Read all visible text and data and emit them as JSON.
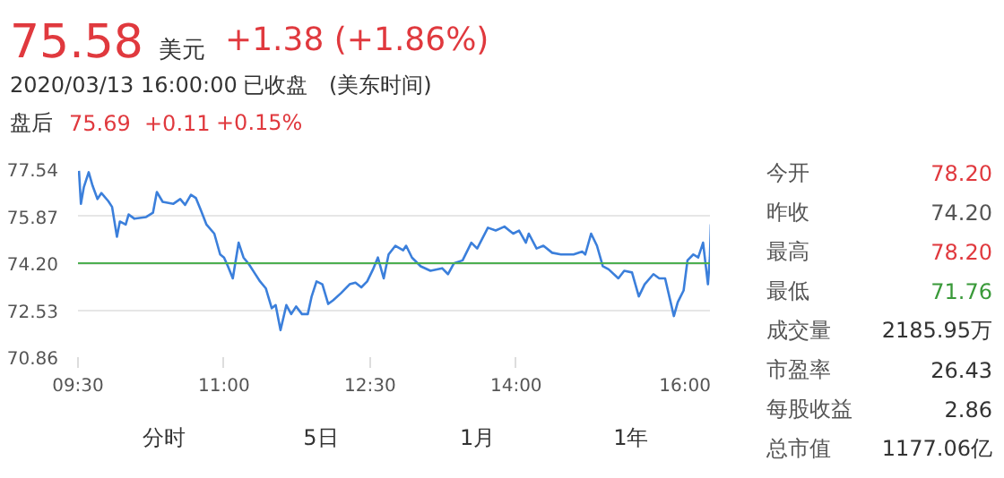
{
  "chart_data": {
    "type": "line",
    "x": [
      9.51,
      9.53,
      9.56,
      9.61,
      9.65,
      9.7,
      9.74,
      9.81,
      9.85,
      9.9,
      9.93,
      9.99,
      10.02,
      10.08,
      10.2,
      10.27,
      10.31,
      10.37,
      10.48,
      10.55,
      10.6,
      10.66,
      10.71,
      10.76,
      10.82,
      10.9,
      10.96,
      11.0,
      11.04,
      11.09,
      11.15,
      11.2,
      11.25,
      11.31,
      11.37,
      11.43,
      11.49,
      11.53,
      11.58,
      11.64,
      11.69,
      11.74,
      11.8,
      11.86,
      11.9,
      11.95,
      12.01,
      12.07,
      12.12,
      12.2,
      12.29,
      12.35,
      12.41,
      12.47,
      12.53,
      12.58,
      12.64,
      12.69,
      12.76,
      12.84,
      12.87,
      12.93,
      13.02,
      13.12,
      13.24,
      13.3,
      13.36,
      13.45,
      13.54,
      13.6,
      13.71,
      13.79,
      13.88,
      13.97,
      14.03,
      14.1,
      14.13,
      14.21,
      14.28,
      14.37,
      14.46,
      14.59,
      14.68,
      14.71,
      14.77,
      14.83,
      14.89,
      14.95,
      15.05,
      15.11,
      15.19,
      15.26,
      15.32,
      15.41,
      15.47,
      15.53,
      15.62,
      15.66,
      15.72,
      15.76,
      15.82,
      15.87,
      15.92,
      15.97,
      15.99,
      16.0
    ],
    "series": [
      {
        "color": "#3b7fdb",
        "values": [
          77.48,
          76.31,
          76.9,
          77.43,
          76.95,
          76.48,
          76.69,
          76.41,
          76.2,
          75.14,
          75.68,
          75.57,
          75.93,
          75.78,
          75.84,
          75.99,
          76.73,
          76.38,
          76.31,
          76.48,
          76.27,
          76.63,
          76.52,
          76.1,
          75.57,
          75.25,
          74.51,
          74.4,
          74.09,
          73.66,
          74.93,
          74.4,
          74.19,
          73.87,
          73.55,
          73.3,
          72.6,
          72.71,
          71.82,
          72.71,
          72.39,
          72.66,
          72.39,
          72.39,
          73.02,
          73.55,
          73.45,
          72.75,
          72.88,
          73.13,
          73.45,
          73.51,
          73.34,
          73.55,
          73.98,
          74.4,
          73.66,
          74.51,
          74.82,
          74.66,
          74.82,
          74.4,
          74.09,
          73.93,
          74.02,
          73.81,
          74.19,
          74.3,
          74.93,
          74.72,
          75.46,
          75.36,
          75.5,
          75.25,
          75.36,
          74.93,
          75.25,
          74.72,
          74.82,
          74.57,
          74.51,
          74.51,
          74.61,
          74.51,
          75.25,
          74.82,
          74.09,
          73.98,
          73.66,
          73.93,
          73.87,
          73.02,
          73.45,
          73.81,
          73.66,
          73.66,
          72.32,
          72.81,
          73.23,
          74.3,
          74.51,
          74.4,
          74.93,
          73.45,
          74.4,
          75.58
        ]
      }
    ],
    "xlim": [
      9.5,
      16.0
    ],
    "ylim": [
      70.86,
      77.54
    ],
    "xticks": [
      {
        "value": 9.5,
        "label": "09:30"
      },
      {
        "value": 11,
        "label": "11:00"
      },
      {
        "value": 12.5,
        "label": "12:30"
      },
      {
        "value": 14,
        "label": "14:00"
      },
      {
        "value": 16,
        "label": "16:00"
      }
    ],
    "yticks": [
      70.86,
      72.53,
      {
        "value": 74.2,
        "label": "74.20"
      },
      75.87,
      77.54
    ],
    "grid": "y",
    "ref_lines": [
      {
        "axis": "y",
        "value": 74.2,
        "color": "#4caf50"
      }
    ],
    "annotations": [
      "75.58",
      "美元",
      "+1.38 (+1.86%)",
      "2020/03/13 16:00:00",
      "已收盘",
      "(美东时间)",
      "盘后",
      "75.69",
      "+0.11",
      "+0.15%",
      "今开",
      "78.20",
      "昨收",
      "74.20",
      "最高",
      "78.20",
      "最低",
      "71.76",
      "成交量",
      "2185.95万",
      "市盈率",
      "26.43",
      "每股收益",
      "2.86",
      "总市值",
      "1177.06亿",
      "分时",
      "5日",
      "1月",
      "1年"
    ]
  }
}
